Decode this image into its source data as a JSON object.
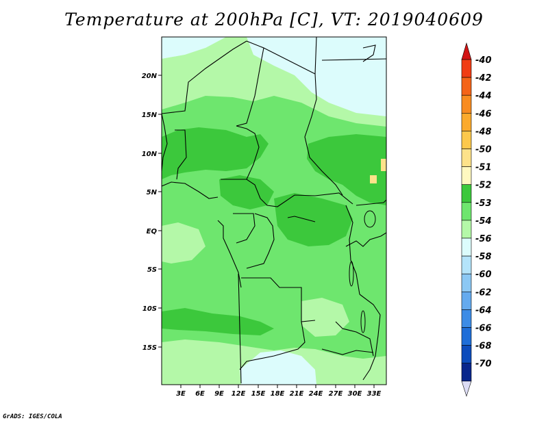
{
  "title": "Temperature at 200hPa [C], VT: 2019040609",
  "credit": "GrADS: IGES/COLA",
  "lat_labels": [
    "20N",
    "15N",
    "10N",
    "5N",
    "EQ",
    "5S",
    "10S",
    "15S"
  ],
  "lon_labels": [
    "3E",
    "6E",
    "9E",
    "12E",
    "15E",
    "18E",
    "21E",
    "24E",
    "27E",
    "30E",
    "33E"
  ],
  "legend": {
    "entries": [
      {
        "label": "-40",
        "color": "#f03c14"
      },
      {
        "label": "-42",
        "color": "#f46418"
      },
      {
        "label": "-44",
        "color": "#f88c20"
      },
      {
        "label": "-46",
        "color": "#fbaa2c"
      },
      {
        "label": "-48",
        "color": "#fcc84c"
      },
      {
        "label": "-50",
        "color": "#fde28a"
      },
      {
        "label": "-51",
        "color": "#fff8c0"
      },
      {
        "label": "-52",
        "color": "#3cc83c"
      },
      {
        "label": "-53",
        "color": "#6ee66e"
      },
      {
        "label": "-54",
        "color": "#b4f8a8"
      },
      {
        "label": "-56",
        "color": "#dcfcfc"
      },
      {
        "label": "-58",
        "color": "#b4e4fa"
      },
      {
        "label": "-60",
        "color": "#8cc8f4"
      },
      {
        "label": "-62",
        "color": "#64aaee"
      },
      {
        "label": "-64",
        "color": "#3c8ce6"
      },
      {
        "label": "-66",
        "color": "#1e6ed8"
      },
      {
        "label": "-68",
        "color": "#0c4cbc"
      },
      {
        "label": "-70",
        "color": "#08268c"
      }
    ],
    "top_color": "#d21414",
    "bottom_color": "#dcdcf4"
  }
}
